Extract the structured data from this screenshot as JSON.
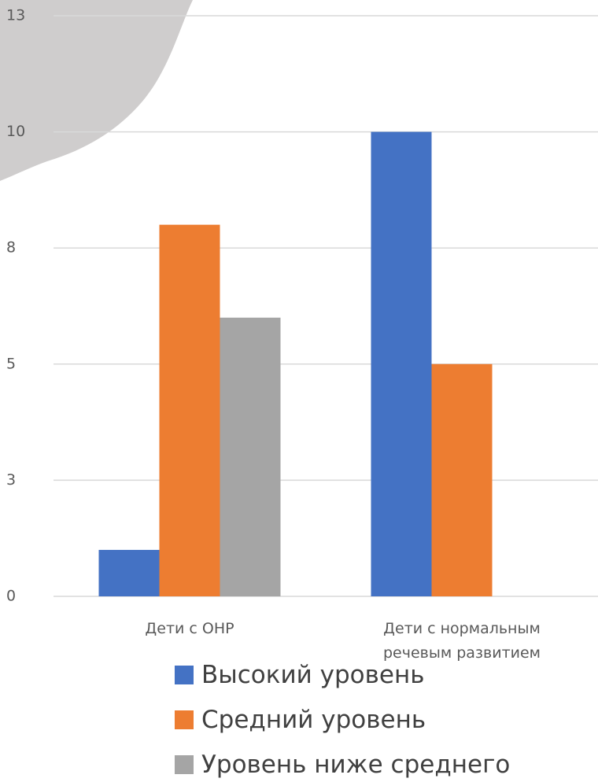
{
  "chart_data": {
    "type": "bar",
    "categories": [
      "Дети с ОНР",
      "Дети с нормальным речевым развитием"
    ],
    "series": [
      {
        "name": "Высокий уровень",
        "color": "#4472c4",
        "values": [
          1,
          10
        ]
      },
      {
        "name": "Средний уровень",
        "color": "#ed7d31",
        "values": [
          8,
          5
        ]
      },
      {
        "name": "Уровень ниже среднего",
        "color": "#a5a5a5",
        "values": [
          6,
          0
        ]
      }
    ],
    "ylim": [
      0,
      12.5
    ],
    "yticks": [
      0,
      {
        "value": 2.5,
        "label": "3"
      },
      5,
      {
        "value": 7.5,
        "label": "8"
      },
      10,
      {
        "value": 12.5,
        "label": "13"
      }
    ],
    "grid": true,
    "legend": "bottom"
  }
}
